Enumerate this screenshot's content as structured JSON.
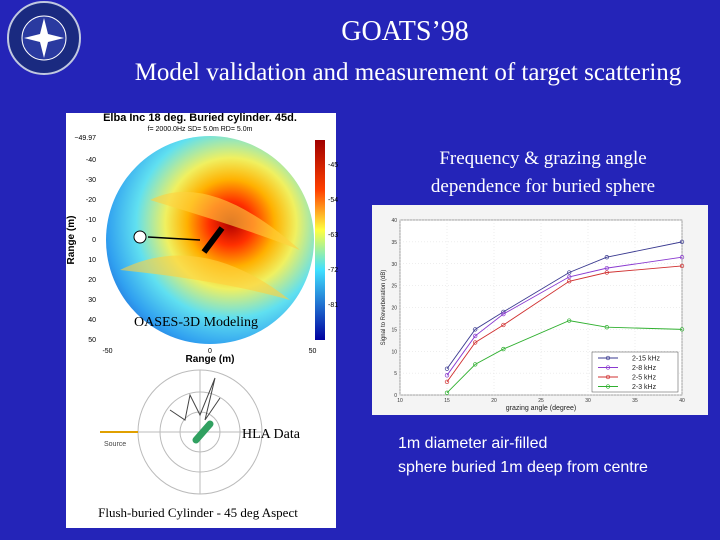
{
  "header": {
    "title": "GOATS’98",
    "subtitle": "Model validation and measurement of target scattering"
  },
  "left_panel": {
    "plot_title": "Elba Inc 18 deg. Buried cylinder. 45d.",
    "plot_subtitle": "f= 2000.0Hz  SD=  5.0m  RD=  5.0m",
    "y_axis_label": "Range (m)",
    "x_axis_label": "Range (m)",
    "y_top_label": "−49.97",
    "yticks": [
      -40,
      -30,
      -20,
      -10,
      0,
      10,
      20,
      30,
      40,
      50
    ],
    "xticks": [
      -50,
      0,
      50
    ],
    "colorbar_ticks": [
      -45,
      -54,
      -63,
      -72,
      -81
    ],
    "model_label": "OASES-3D Modeling",
    "data_label": "HLA Data",
    "source_label": "Source",
    "caption": "Flush-buried Cylinder - 45 deg Aspect"
  },
  "right_panel": {
    "heading": "Frequency & grazing angle dependence for buried sphere",
    "description": "1m diameter air-filled sphere buried 1m deep from centre"
  },
  "frequency_plot": {
    "type": "line",
    "x_label": "grazing angle (degree)",
    "y_label": "Signal to Reverberation (dB)",
    "x": [
      15,
      18,
      21,
      28,
      32,
      40
    ],
    "xlim": [
      10,
      40
    ],
    "xticks": [
      10,
      15,
      20,
      25,
      30,
      35,
      40
    ],
    "ylim": [
      0,
      40
    ],
    "yticks": [
      0,
      5,
      10,
      15,
      20,
      25,
      30,
      35,
      40
    ],
    "series": [
      {
        "name": "2-15 kHz",
        "color": "#3a3a90",
        "values": [
          6,
          15,
          19,
          28,
          31.5,
          35
        ]
      },
      {
        "name": "2-8 kHz",
        "color": "#8a3ad0",
        "values": [
          4.5,
          13.5,
          18.5,
          27,
          29,
          31.5
        ]
      },
      {
        "name": "2-5 kHz",
        "color": "#d03030",
        "values": [
          3,
          12,
          16,
          26,
          28,
          29.5
        ]
      },
      {
        "name": "2-3 kHz",
        "color": "#30b030",
        "values": [
          0.5,
          7,
          10.5,
          17,
          15.5,
          15
        ]
      }
    ]
  }
}
